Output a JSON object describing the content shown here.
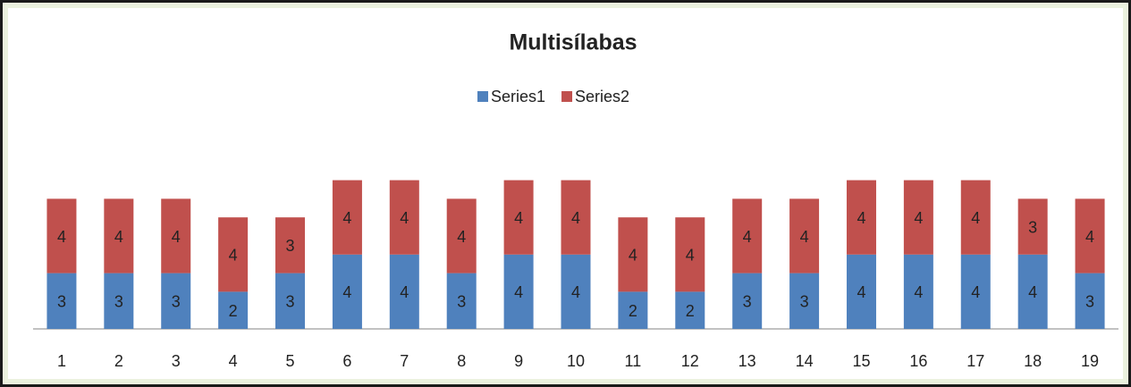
{
  "chart_data": {
    "type": "stacked_bar",
    "title": "Multisílabas",
    "categories": [
      "1",
      "2",
      "3",
      "4",
      "5",
      "6",
      "7",
      "8",
      "9",
      "10",
      "11",
      "12",
      "13",
      "14",
      "15",
      "16",
      "17",
      "18",
      "19"
    ],
    "series": [
      {
        "name": "Series1",
        "color": "#4f81bd",
        "values": [
          3,
          3,
          3,
          2,
          3,
          4,
          4,
          3,
          4,
          4,
          2,
          2,
          3,
          3,
          4,
          4,
          4,
          4,
          3
        ]
      },
      {
        "name": "Series2",
        "color": "#c0504d",
        "values": [
          4,
          4,
          4,
          4,
          3,
          4,
          4,
          4,
          4,
          4,
          4,
          4,
          4,
          4,
          4,
          4,
          4,
          3,
          4
        ]
      }
    ],
    "legend": "top"
  }
}
